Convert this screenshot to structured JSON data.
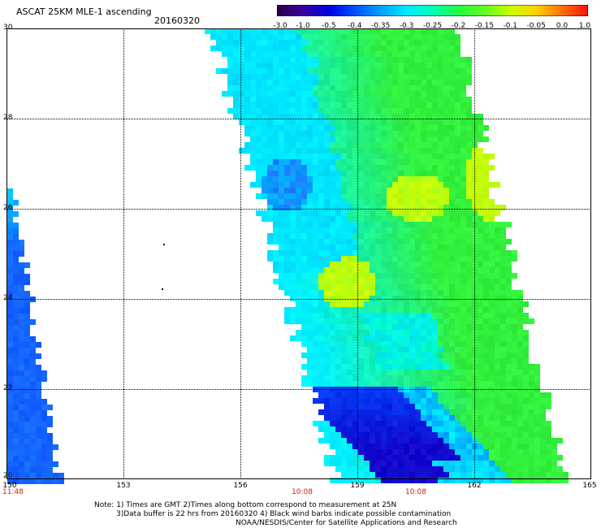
{
  "header": {
    "title": "ASCAT 25KM MLE-1 ascending",
    "date": "20160320"
  },
  "colorbar": {
    "labels": [
      "-3.0",
      "-1.0",
      "-0.5",
      "-0.4",
      "-0.35",
      "-0.3",
      "-0.25",
      "-0.2",
      "-0.15",
      "-0.1",
      "-0.05",
      "0.0",
      "1.0"
    ],
    "colors": [
      "#2a0040",
      "#3a00a0",
      "#0000e0",
      "#0050ff",
      "#00a0ff",
      "#00e8ff",
      "#00ffb8",
      "#20ff40",
      "#60ff20",
      "#c8ff00",
      "#ffd000",
      "#ff7000",
      "#ff1010"
    ]
  },
  "map": {
    "lat_labels": [
      "30",
      "28",
      "26",
      "24",
      "22",
      "20"
    ],
    "lon_labels": [
      "150",
      "153",
      "156",
      "159",
      "162",
      "165"
    ],
    "time_labels": [
      "11:48",
      "10:08",
      "10:08"
    ]
  },
  "notes": {
    "line1": "Note: 1) Times are GMT 2)Times along bottom correspond to measurement at 25N",
    "line2": "3)Data buffer is 22 hrs from 20160320 4) Black wind barbs indicate possible contamination",
    "line3": "NOAA/NESDIS/Center for Satellite Applications and Research"
  },
  "colors": {
    "time_label": "#cc2200",
    "swath_west": "#1a5cff",
    "swath_main_cyan": "#00f0ff",
    "swath_main_green": "#30f040",
    "low_values_blue": "#1010e0"
  }
}
